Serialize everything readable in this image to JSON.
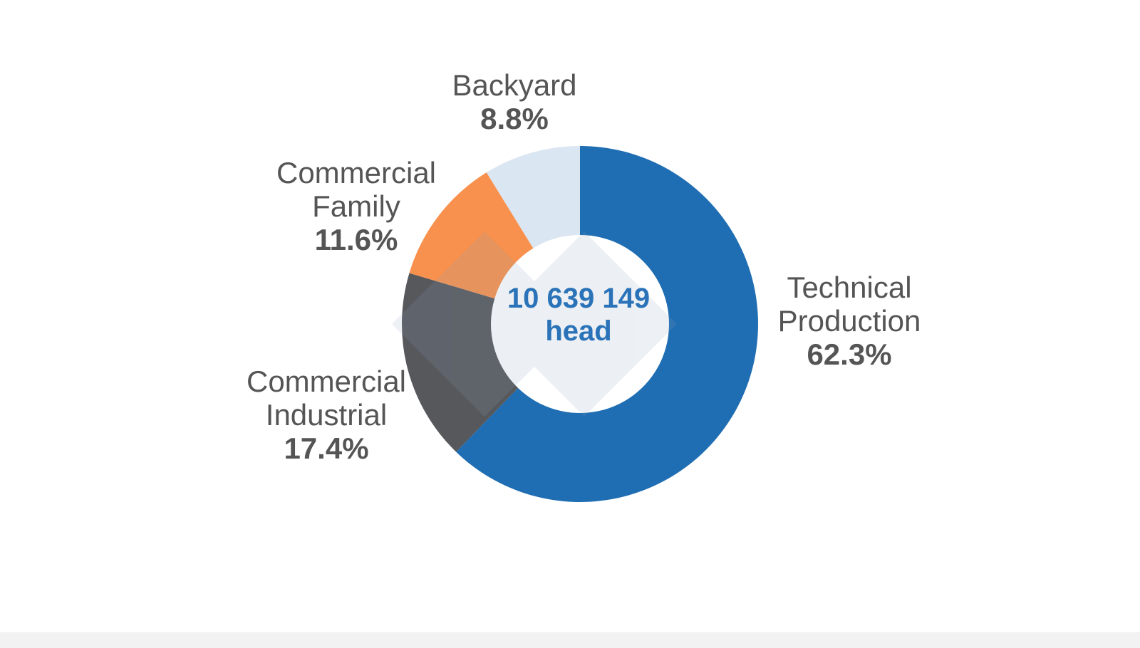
{
  "chart_data": {
    "type": "pie",
    "variant": "donut",
    "center_label": [
      "10 639 149",
      "head"
    ],
    "slices": [
      {
        "name": "Technical Production",
        "name_lines": [
          "Technical",
          "Production"
        ],
        "value": 62.3,
        "label": "62.3%",
        "color": "#1f6db2"
      },
      {
        "name": "Commercial Industrial",
        "name_lines": [
          "Commercial",
          "Industrial"
        ],
        "value": 17.4,
        "label": "17.4%",
        "color": "#56585c"
      },
      {
        "name": "Commercial Family",
        "name_lines": [
          "Commercial",
          "Family"
        ],
        "value": 11.6,
        "label": "11.6%",
        "color": "#f8914d"
      },
      {
        "name": "Backyard",
        "name_lines": [
          "Backyard"
        ],
        "value": 8.8,
        "label": "8.8%",
        "color": "#dbe6f3"
      }
    ],
    "start_angle": "12 o'clock",
    "direction": "clockwise",
    "legend": "none"
  },
  "colors": {
    "label_text": "#555555",
    "center_text": "#2a73b8",
    "background": "#ffffff"
  }
}
